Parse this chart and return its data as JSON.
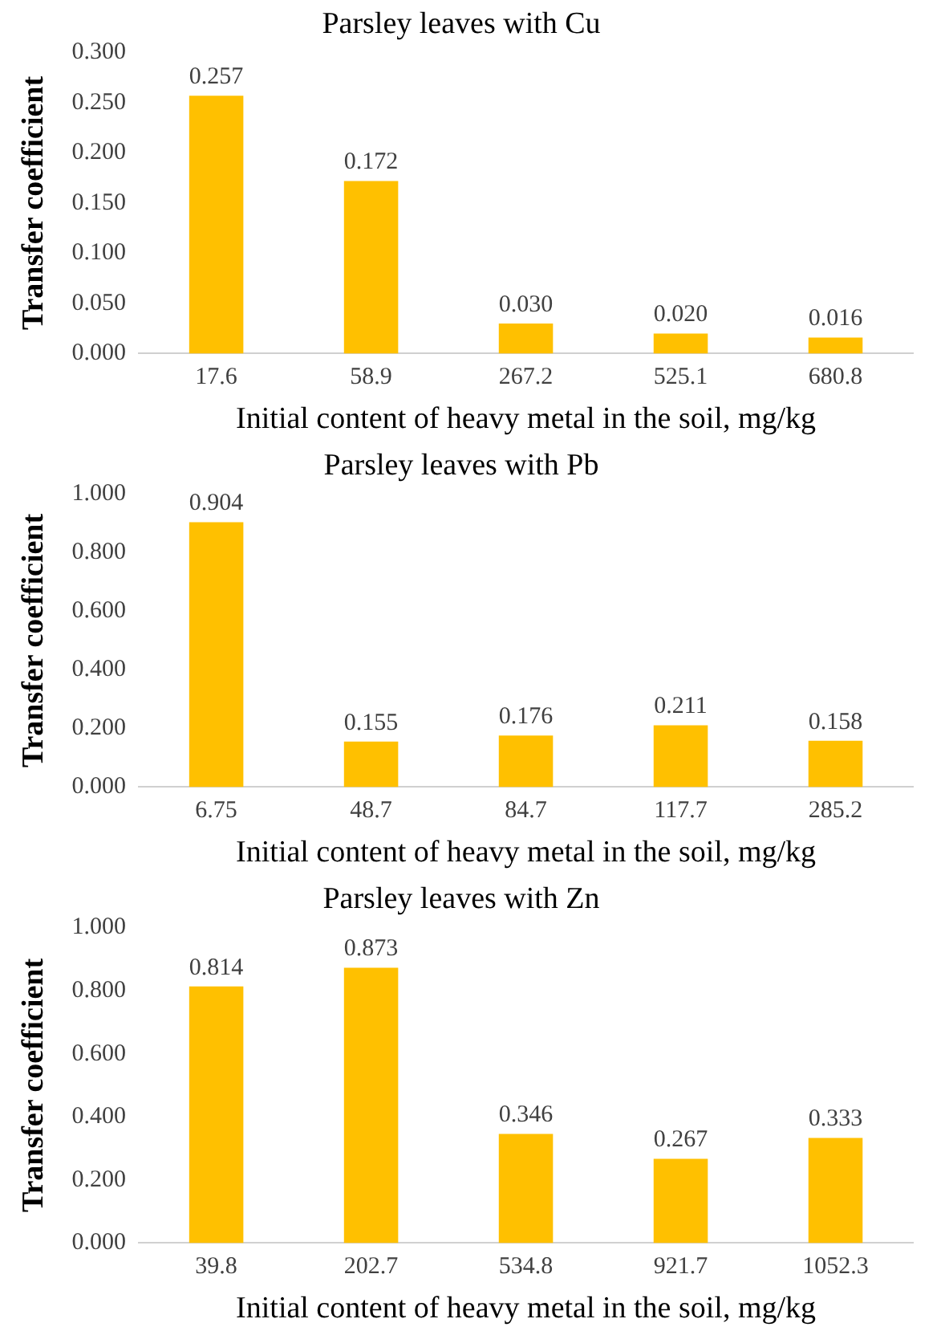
{
  "chart_data": [
    {
      "type": "bar",
      "title": "Parsley leaves with Cu",
      "xlabel": "Initial content of heavy metal in the soil, mg/kg",
      "ylabel": "Transfer coefficient",
      "categories": [
        "17.6",
        "58.9",
        "267.2",
        "525.1",
        "680.8"
      ],
      "values": [
        0.257,
        0.172,
        0.03,
        0.02,
        0.016
      ],
      "value_labels": [
        "0.257",
        "0.172",
        "0.030",
        "0.020",
        "0.016"
      ],
      "color": "#ffc000",
      "ylim": [
        0,
        0.3
      ],
      "yticks": [
        {
          "value": 0,
          "label": "0.000"
        },
        {
          "value": 0.05,
          "label": "0.050"
        },
        {
          "value": 0.1,
          "label": "0.100"
        },
        {
          "value": 0.15,
          "label": "0.150"
        },
        {
          "value": 0.2,
          "label": "0.200"
        },
        {
          "value": 0.25,
          "label": "0.250"
        },
        {
          "value": 0.3,
          "label": "0.300"
        }
      ],
      "grid": false,
      "legend": false
    },
    {
      "type": "bar",
      "title": "Parsley leaves with Pb",
      "xlabel": "Initial content of heavy metal in the soil, mg/kg",
      "ylabel": "Transfer coefficient",
      "categories": [
        "6.75",
        "48.7",
        "84.7",
        "117.7",
        "285.2"
      ],
      "values": [
        0.904,
        0.155,
        0.176,
        0.211,
        0.158
      ],
      "value_labels": [
        "0.904",
        "0.155",
        "0.176",
        "0.211",
        "0.158"
      ],
      "color": "#ffc000",
      "ylim": [
        0,
        1
      ],
      "yticks": [
        {
          "value": 0,
          "label": "0.000"
        },
        {
          "value": 0.2,
          "label": "0.200"
        },
        {
          "value": 0.4,
          "label": "0.400"
        },
        {
          "value": 0.6,
          "label": "0.600"
        },
        {
          "value": 0.8,
          "label": "0.800"
        },
        {
          "value": 1,
          "label": "1.000"
        }
      ],
      "grid": false,
      "legend": false
    },
    {
      "type": "bar",
      "title": "Parsley leaves with Zn",
      "xlabel": "Initial content of heavy metal in the soil, mg/kg",
      "ylabel": "Transfer coefficient",
      "categories": [
        "39.8",
        "202.7",
        "534.8",
        "921.7",
        "1052.3"
      ],
      "values": [
        0.814,
        0.873,
        0.346,
        0.267,
        0.333
      ],
      "value_labels": [
        "0.814",
        "0.873",
        "0.346",
        "0.267",
        "0.333"
      ],
      "color": "#ffc000",
      "ylim": [
        0,
        1
      ],
      "yticks": [
        {
          "value": 0,
          "label": "0.000"
        },
        {
          "value": 0.2,
          "label": "0.200"
        },
        {
          "value": 0.4,
          "label": "0.400"
        },
        {
          "value": 0.6,
          "label": "0.600"
        },
        {
          "value": 0.8,
          "label": "0.800"
        },
        {
          "value": 1,
          "label": "1.000"
        }
      ],
      "grid": false,
      "legend": false
    }
  ]
}
